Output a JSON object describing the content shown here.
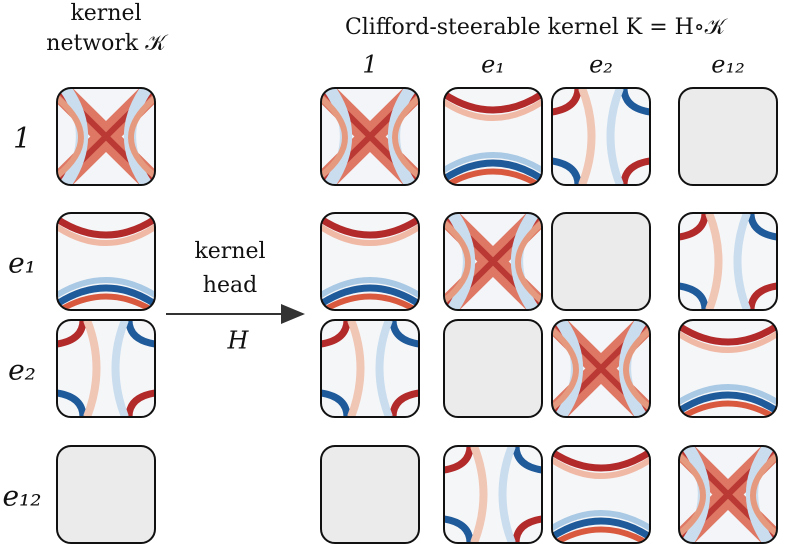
{
  "left_title": [
    "kernel",
    "network 𝒦"
  ],
  "right_title": "Clifford-steerable kernel K = H∘𝒦",
  "columns": [
    "1",
    "e₁",
    "e₂",
    "e₁₂"
  ],
  "rows": [
    "1",
    "e₁",
    "e₂",
    "e₁₂"
  ],
  "arrow_label": [
    "kernel",
    "head"
  ],
  "arrow_symbol": "H"
}
